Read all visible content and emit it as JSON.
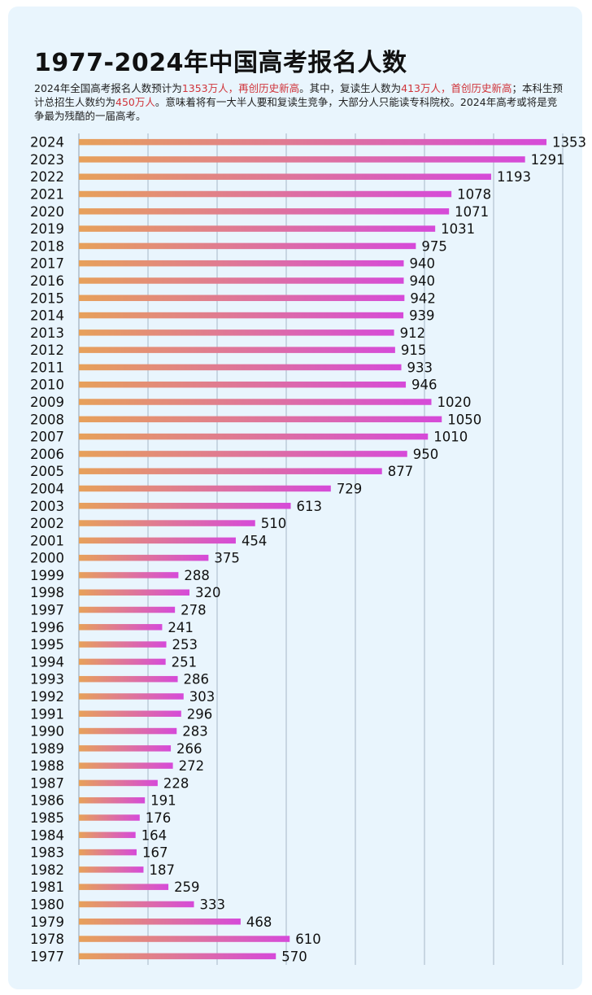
{
  "title": "1977-2024年中国高考报名人数",
  "subtitle": {
    "p1": "2024年全国高考报名人数预计为",
    "h1": "1353万人，再创历史新高",
    "p2": "。其中，复读生人数为",
    "h2": "413万人，首创历史新高",
    "p3": "；本科生预计总招生人数约为",
    "h3": "450万人",
    "p4": "。意味着将有一大半人要和复读生竞争，大部分人只能读专科院校。2024年高考或将是竞争最为残酷的一届高考。"
  },
  "colors": {
    "highlight": "#d0343a",
    "bar_start": "#e7a15a",
    "bar_end": "#d64ad9",
    "grid": "#a8b8c6",
    "background": "#e9f5fd"
  },
  "chart_data": {
    "type": "bar",
    "orientation": "horizontal",
    "title": "1977-2024年中国高考报名人数",
    "xlabel": "",
    "ylabel": "",
    "xlim": [
      0,
      1400
    ],
    "grid": true,
    "categories": [
      "2024",
      "2023",
      "2022",
      "2021",
      "2020",
      "2019",
      "2018",
      "2017",
      "2016",
      "2015",
      "2014",
      "2013",
      "2012",
      "2011",
      "2010",
      "2009",
      "2008",
      "2007",
      "2006",
      "2005",
      "2004",
      "2003",
      "2002",
      "2001",
      "2000",
      "1999",
      "1998",
      "1997",
      "1996",
      "1995",
      "1994",
      "1993",
      "1992",
      "1991",
      "1990",
      "1989",
      "1988",
      "1987",
      "1986",
      "1985",
      "1984",
      "1983",
      "1982",
      "1981",
      "1980",
      "1979",
      "1978",
      "1977"
    ],
    "values": [
      1353,
      1291,
      1193,
      1078,
      1071,
      1031,
      975,
      940,
      940,
      942,
      939,
      912,
      915,
      933,
      946,
      1020,
      1050,
      1010,
      950,
      877,
      729,
      613,
      510,
      454,
      375,
      288,
      320,
      278,
      241,
      253,
      251,
      286,
      303,
      296,
      283,
      266,
      272,
      228,
      191,
      176,
      164,
      167,
      187,
      259,
      333,
      468,
      610,
      570
    ]
  }
}
